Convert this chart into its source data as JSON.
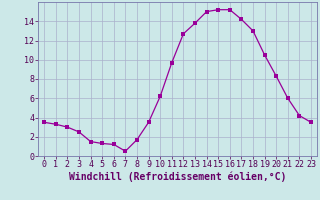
{
  "x": [
    0,
    1,
    2,
    3,
    4,
    5,
    6,
    7,
    8,
    9,
    10,
    11,
    12,
    13,
    14,
    15,
    16,
    17,
    18,
    19,
    20,
    21,
    22,
    23
  ],
  "y": [
    3.5,
    3.3,
    3.0,
    2.5,
    1.5,
    1.3,
    1.2,
    0.5,
    1.7,
    3.5,
    6.2,
    9.7,
    12.7,
    13.8,
    15.0,
    15.2,
    15.2,
    14.2,
    13.0,
    10.5,
    8.3,
    6.0,
    4.2,
    3.5
  ],
  "line_color": "#990099",
  "marker": "s",
  "marker_size": 2.5,
  "xlim": [
    -0.5,
    23.5
  ],
  "ylim": [
    0,
    16
  ],
  "yticks": [
    0,
    2,
    4,
    6,
    8,
    10,
    12,
    14
  ],
  "xticks": [
    0,
    1,
    2,
    3,
    4,
    5,
    6,
    7,
    8,
    9,
    10,
    11,
    12,
    13,
    14,
    15,
    16,
    17,
    18,
    19,
    20,
    21,
    22,
    23
  ],
  "bg_color": "#cce8e8",
  "grid_color": "#aab0cc",
  "tick_fontsize": 6,
  "xlabel": "Windchill (Refroidissement éolien,°C)",
  "xlabel_color": "#660066",
  "xlabel_fontsize": 7
}
